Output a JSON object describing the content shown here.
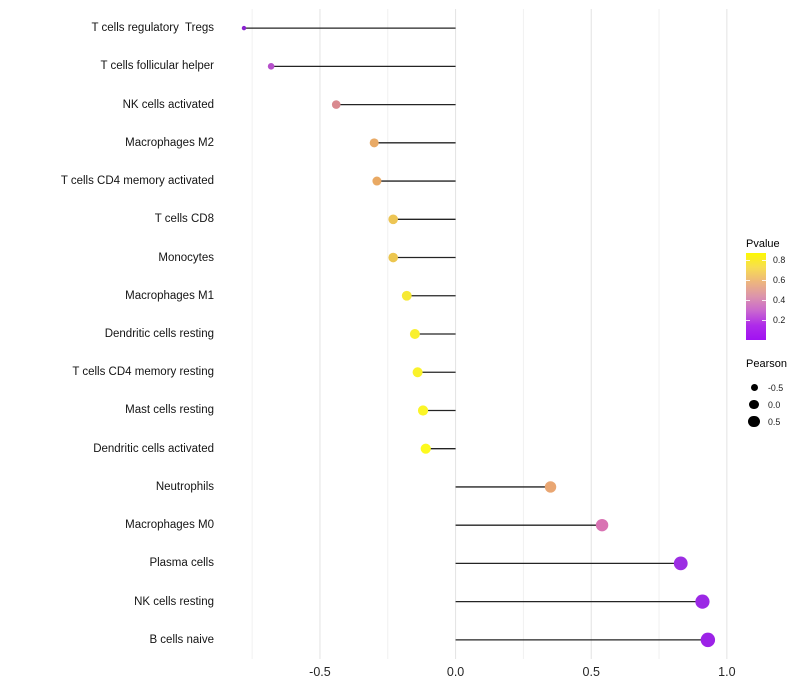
{
  "chart_data": {
    "type": "lollipop",
    "title": "",
    "xlabel": "",
    "ylabel": "",
    "description": "Horizontal lollipop chart of Pearson correlation per immune cell type, point color encodes P-value, point size encodes Pearson",
    "xlim": [
      -0.85,
      1.03
    ],
    "baseline_x": 0,
    "grid": "on",
    "gridlines_major": [
      -0.5,
      0,
      0.5,
      1.0
    ],
    "gridlines_minor": [
      -0.75,
      -0.25,
      0.25,
      0.75
    ],
    "x_ticks": [
      {
        "label": "-0.5",
        "value": -0.5
      },
      {
        "label": "0.0",
        "value": 0.0
      },
      {
        "label": "0.5",
        "value": 0.5
      },
      {
        "label": "1.0",
        "value": 1.0
      }
    ],
    "categories": [
      "T cells regulatory  Tregs",
      "T cells follicular helper",
      "NK cells activated",
      "Macrophages M2",
      "T cells CD4 memory activated",
      "T cells CD8",
      "Monocytes",
      "Macrophages M1",
      "Dendritic cells resting",
      "T cells CD4 memory resting",
      "Mast cells resting",
      "Dendritic cells activated",
      "Neutrophils",
      "Macrophages M0",
      "Plasma cells",
      "NK cells resting",
      "B cells naive"
    ],
    "points": [
      {
        "label": "T cells regulatory  Tregs",
        "pearson": -0.78,
        "pvalue_approx": 0.07,
        "color": "#8a23d0",
        "radius": 2.2
      },
      {
        "label": "T cells follicular helper",
        "pearson": -0.68,
        "pvalue_approx": 0.22,
        "color": "#b650cb",
        "radius": 3.3
      },
      {
        "label": "NK cells activated",
        "pearson": -0.44,
        "pvalue_approx": 0.45,
        "color": "#d9898f",
        "radius": 4.3
      },
      {
        "label": "Macrophages M2",
        "pearson": -0.3,
        "pvalue_approx": 0.6,
        "color": "#e9aa66",
        "radius": 4.5
      },
      {
        "label": "T cells CD4 memory activated",
        "pearson": -0.29,
        "pvalue_approx": 0.6,
        "color": "#e9a963",
        "radius": 4.5
      },
      {
        "label": "T cells CD8",
        "pearson": -0.23,
        "pvalue_approx": 0.68,
        "color": "#edc554",
        "radius": 4.8
      },
      {
        "label": "Monocytes",
        "pearson": -0.23,
        "pvalue_approx": 0.69,
        "color": "#ecc64f",
        "radius": 4.8
      },
      {
        "label": "Macrophages M1",
        "pearson": -0.18,
        "pvalue_approx": 0.75,
        "color": "#f6e934",
        "radius": 4.9
      },
      {
        "label": "Dendritic cells resting",
        "pearson": -0.15,
        "pvalue_approx": 0.78,
        "color": "#f9f02e",
        "radius": 5.0
      },
      {
        "label": "T cells CD4 memory resting",
        "pearson": -0.14,
        "pvalue_approx": 0.79,
        "color": "#faf22b",
        "radius": 5.0
      },
      {
        "label": "Mast cells resting",
        "pearson": -0.12,
        "pvalue_approx": 0.81,
        "color": "#fbf527",
        "radius": 5.1
      },
      {
        "label": "Dendritic cells activated",
        "pearson": -0.11,
        "pvalue_approx": 0.85,
        "color": "#fdfa1e",
        "radius": 5.1
      },
      {
        "label": "Neutrophils",
        "pearson": 0.35,
        "pvalue_approx": 0.61,
        "color": "#e9a672",
        "radius": 5.7
      },
      {
        "label": "Macrophages M0",
        "pearson": 0.54,
        "pvalue_approx": 0.35,
        "color": "#d973b3",
        "radius": 6.2
      },
      {
        "label": "Plasma cells",
        "pearson": 0.83,
        "pvalue_approx": 0.1,
        "color": "#9c2ee3",
        "radius": 6.9
      },
      {
        "label": "NK cells resting",
        "pearson": 0.91,
        "pvalue_approx": 0.08,
        "color": "#9b28e5",
        "radius": 7.1
      },
      {
        "label": "B cells naive",
        "pearson": 0.93,
        "pvalue_approx": 0.06,
        "color": "#9c22e7",
        "radius": 7.2
      }
    ],
    "legends": {
      "pvalue": {
        "title": "Pvalue",
        "position": "right",
        "range": [
          0,
          0.87
        ],
        "gradient_top_to_bottom": [
          "#fdf903",
          "#f7dd52",
          "#edb57e",
          "#dc94ac",
          "#c967cf",
          "#ae2bea",
          "#a111f2"
        ],
        "ticks": [
          {
            "label": "0.8",
            "value": 0.8
          },
          {
            "label": "0.6",
            "value": 0.6
          },
          {
            "label": "0.4",
            "value": 0.4
          },
          {
            "label": "0.2",
            "value": 0.2
          }
        ]
      },
      "pearson": {
        "title": "Pearson",
        "position": "right",
        "items": [
          {
            "label": "-0.5",
            "radius": 3.5
          },
          {
            "label": "0.0",
            "radius": 4.6
          },
          {
            "label": "0.5",
            "radius": 5.8
          }
        ]
      }
    },
    "style": {
      "stem_color": "#242424",
      "stem_width": 1.3,
      "grid_major_color": "#e3e3e3",
      "grid_minor_color": "#f0f0f0",
      "background": "#ffffff"
    }
  }
}
